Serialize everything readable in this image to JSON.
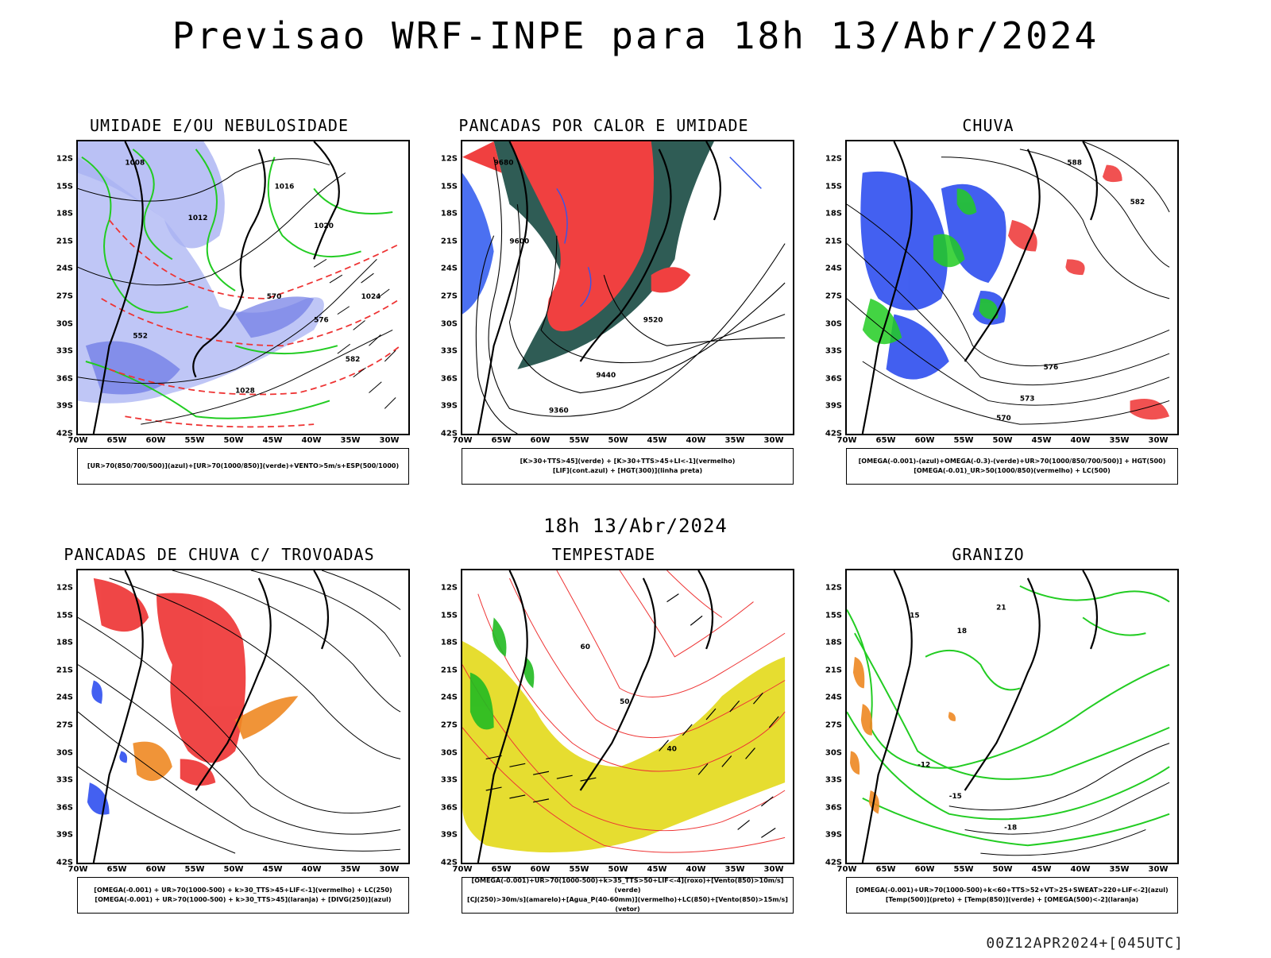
{
  "main_title": "Previsao WRF-INPE  para 18h 13/Abr/2024",
  "mid_title": "18h 13/Abr/2024",
  "footer": "00Z12APR2024+[045UTC]",
  "lat_ticks": [
    "12S",
    "15S",
    "18S",
    "21S",
    "24S",
    "27S",
    "30S",
    "33S",
    "36S",
    "39S",
    "42S"
  ],
  "lon_ticks": [
    "70W",
    "65W",
    "60W",
    "55W",
    "50W",
    "45W",
    "40W",
    "35W",
    "30W"
  ],
  "panels": [
    {
      "title": "UMIDADE E/OU NEBULOSIDADE",
      "legend": [
        "[UR>70(850/700/500)](azul)+[UR>70(1000/850)](verde)+VENTO>5m/s+ESP(500/1000)"
      ],
      "contour_labels": [
        "1008",
        "1012",
        "1016",
        "1020",
        "1024",
        "1028",
        "570",
        "576",
        "582",
        "552"
      ],
      "colors": {
        "blue": "#8c96f0",
        "green": "#22cc22",
        "red": "#ee3333"
      }
    },
    {
      "title": "PANCADAS POR CALOR E UMIDADE",
      "legend": [
        "[K>30+TTS>45](verde) + [K>30+TTS>45+LI<-1](vermelho)",
        "[LIF](cont.azul) + [HGT(300)](linha preta)"
      ],
      "contour_labels": [
        "9680",
        "9600",
        "9520",
        "9440",
        "9360"
      ],
      "colors": {
        "red": "#f04040",
        "darkgreen": "#2f5c55",
        "blue": "#3355ee"
      }
    },
    {
      "title": "CHUVA",
      "legend": [
        "[OMEGA(-0.001)-(azul)+OMEGA(-0.3)-(verde)+UR>70(1000/850/700/500)] + HGT(500)",
        "[OMEGA(-0.01)_UR>50(1000/850)(vermelho) + LC(500)"
      ],
      "contour_labels": [
        "588",
        "582",
        "576",
        "573",
        "570"
      ],
      "colors": {
        "blue": "#2244ee",
        "green": "#22cc22",
        "red": "#ee3333"
      }
    },
    {
      "title": "PANCADAS DE CHUVA C/ TROVOADAS",
      "legend": [
        "[OMEGA(-0.001) + UR>70(1000-500) + k>30_TTS>45+LIF<-1](vermelho) + LC(250)",
        "[OMEGA(-0.001) + UR>70(1000-500) + k>30_TTS>45](laranja) + [DIVG(250)](azul)"
      ],
      "contour_labels": [],
      "colors": {
        "red": "#ee3333",
        "orange": "#ee8822",
        "blue": "#2244ee"
      }
    },
    {
      "title": "TEMPESTADE",
      "legend": [
        "[OMEGA(-0.001)+UR>70(1000-500)+k>35_TTS>50+LIF<-4](roxo)+[Vento(850)>10m/s](verde)",
        "[CJ(250)>30m/s](amarelo)+[Agua_P(40-60mm)](vermelho)+LC(850)+[Vento(850)>15m/s](vetor)"
      ],
      "contour_labels": [
        "60",
        "50",
        "40"
      ],
      "colors": {
        "yellow": "#e6dd30",
        "red": "#ee3333",
        "green": "#22bb22"
      }
    },
    {
      "title": "GRANIZO",
      "legend": [
        "[OMEGA(-0.001)+UR>70(1000-500)+k<60+TTS>52+VT>25+SWEAT>220+LIF<-2](azul)",
        "[Temp(500)](preto) + [Temp(850)](verde) + [OMEGA(500)<-2](laranja)"
      ],
      "contour_labels": [
        "-12",
        "-15",
        "-18",
        "15",
        "18",
        "21"
      ],
      "colors": {
        "green": "#22cc22",
        "orange": "#ee8822"
      }
    }
  ]
}
